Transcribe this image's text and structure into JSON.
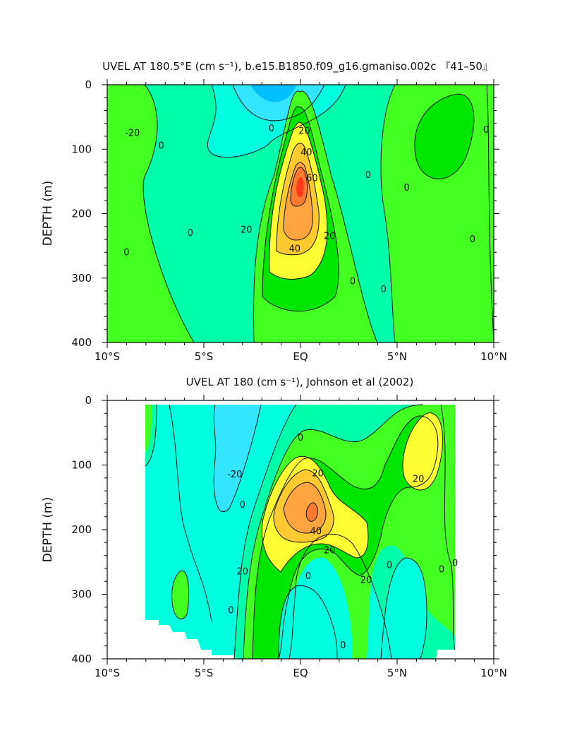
{
  "chart_data": [
    {
      "type": "contour",
      "title": "UVEL AT 180.5°E (cm s⁻¹), b.e15.B1850.f09_g16.gmaniso.002c 『41–50』",
      "xlabel": "",
      "ylabel": "DEPTH (m)",
      "x_ticks": [
        "10°S",
        "5°S",
        "EQ",
        "5°N",
        "10°N"
      ],
      "x_range": [
        -10,
        10
      ],
      "y_ticks": [
        "0",
        "100",
        "200",
        "300",
        "400"
      ],
      "y_range": [
        0,
        400
      ],
      "y_inverted": true,
      "contour_interval": 10,
      "contour_labels": [
        {
          "text": "-20",
          "lat": -8.7,
          "depth": 75
        },
        {
          "text": "0",
          "lat": -7.2,
          "depth": 95
        },
        {
          "text": "20",
          "lat": 0.2,
          "depth": 72
        },
        {
          "text": "40",
          "lat": 0.3,
          "depth": 105
        },
        {
          "text": "60",
          "lat": 0.6,
          "depth": 145
        },
        {
          "text": "20",
          "lat": -2.8,
          "depth": 225
        },
        {
          "text": "40",
          "lat": -0.3,
          "depth": 255
        },
        {
          "text": "20",
          "lat": 1.5,
          "depth": 235
        },
        {
          "text": "0",
          "lat": -5.7,
          "depth": 230
        },
        {
          "text": "0",
          "lat": -1.5,
          "depth": 68
        },
        {
          "text": "0",
          "lat": 3.5,
          "depth": 140
        },
        {
          "text": "0",
          "lat": 5.5,
          "depth": 160
        },
        {
          "text": "0",
          "lat": 2.7,
          "depth": 305
        },
        {
          "text": "0",
          "lat": 4.3,
          "depth": 318
        },
        {
          "text": "0",
          "lat": 9.6,
          "depth": 70
        },
        {
          "text": "0",
          "lat": 8.9,
          "depth": 240
        },
        {
          "text": "0",
          "lat": -9.0,
          "depth": 260
        }
      ],
      "features": [
        {
          "name": "Equatorial Undercurrent core",
          "lat": 0,
          "depth": 170,
          "max_value": 70
        },
        {
          "name": "westward surface flow",
          "lat": -1.5,
          "depth": 10,
          "min_value": -30
        },
        {
          "name": "eastward flow 5-8°N",
          "lat": 7,
          "depth": 80,
          "max_value": 10
        }
      ]
    },
    {
      "type": "contour",
      "title": "UVEL AT 180 (cm s⁻¹), Johnson et al (2002)",
      "xlabel": "",
      "ylabel": "DEPTH (m)",
      "x_ticks": [
        "10°S",
        "5°S",
        "EQ",
        "5°N",
        "10°N"
      ],
      "x_range": [
        -10,
        10
      ],
      "y_ticks": [
        "0",
        "100",
        "200",
        "300",
        "400"
      ],
      "y_range": [
        0,
        400
      ],
      "y_inverted": true,
      "data_extent_lat": [
        -8,
        8
      ],
      "contour_interval": 10,
      "contour_labels": [
        {
          "text": "-20",
          "lat": -3.4,
          "depth": 115
        },
        {
          "text": "20",
          "lat": 0.9,
          "depth": 113
        },
        {
          "text": "20",
          "lat": 6.1,
          "depth": 122
        },
        {
          "text": "40",
          "lat": 0.8,
          "depth": 203
        },
        {
          "text": "20",
          "lat": 1.5,
          "depth": 232
        },
        {
          "text": "20",
          "lat": -3.0,
          "depth": 265
        },
        {
          "text": "20",
          "lat": 3.4,
          "depth": 278
        },
        {
          "text": "0",
          "lat": -3.0,
          "depth": 162
        },
        {
          "text": "0",
          "lat": 0.0,
          "depth": 58
        },
        {
          "text": "0",
          "lat": 0.4,
          "depth": 272
        },
        {
          "text": "0",
          "lat": -3.6,
          "depth": 325
        },
        {
          "text": "0",
          "lat": 2.2,
          "depth": 379
        },
        {
          "text": "0",
          "lat": 4.6,
          "depth": 255
        },
        {
          "text": "0",
          "lat": 7.3,
          "depth": 262
        },
        {
          "text": "0",
          "lat": 8.0,
          "depth": 252
        }
      ],
      "features": [
        {
          "name": "Equatorial Undercurrent core",
          "lat": 0.5,
          "depth": 165,
          "max_value": 60
        },
        {
          "name": "westward surface flow",
          "lat": -2,
          "depth": 60,
          "min_value": -20
        },
        {
          "name": "eastward flow near 6°N",
          "lat": 6.5,
          "depth": 90,
          "max_value": 30
        }
      ]
    }
  ],
  "colors": {
    "neg30": "#00bfff",
    "neg20": "#33e5ff",
    "neg10": "#00ffdf",
    "zero": "#00ffaa",
    "pos10": "#44ff22",
    "pos20": "#00e600",
    "pos30": "#ffff33",
    "pos40": "#ffc930",
    "pos50": "#ffa540",
    "pos60": "#ff7a30",
    "pos70": "#ff3a1a"
  }
}
